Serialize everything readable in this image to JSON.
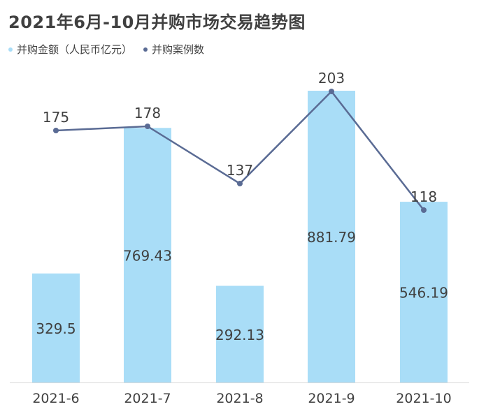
{
  "title": "2021年6月-10月并购市场交易趋势图",
  "legend": [
    {
      "label": "并购金额（人民币亿元）",
      "color": "#a9ddf7"
    },
    {
      "label": "并购案例数",
      "color": "#5a6b94"
    }
  ],
  "chart_data": {
    "type": "bar",
    "categories": [
      "2021-6",
      "2021-7",
      "2021-8",
      "2021-9",
      "2021-10"
    ],
    "series": [
      {
        "name": "并购金额（人民币亿元）",
        "type": "bar",
        "values": [
          329.5,
          769.43,
          292.13,
          881.79,
          546.19
        ],
        "labels": [
          "329.5",
          "769.43",
          "292.13",
          "881.79",
          "546.19"
        ],
        "color": "#a9ddf7"
      },
      {
        "name": "并购案例数",
        "type": "line",
        "values": [
          175,
          178,
          137,
          203,
          118
        ],
        "labels": [
          "175",
          "178",
          "137",
          "203",
          "118"
        ],
        "color": "#5a6b94"
      }
    ],
    "title": "2021年6月-10月并购市场交易趋势图",
    "grid": false,
    "legend_position": "top-left"
  }
}
